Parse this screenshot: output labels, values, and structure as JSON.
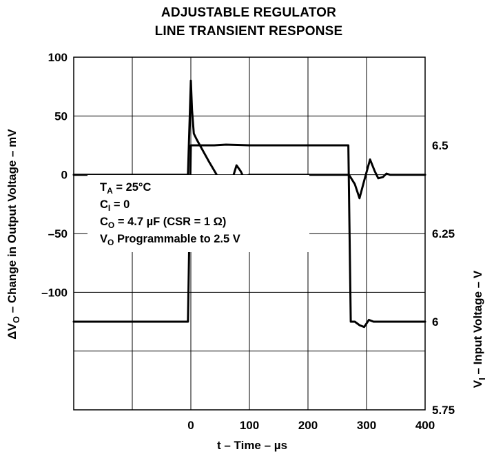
{
  "chart_data": {
    "type": "line",
    "title_lines": [
      "ADJUSTABLE REGULATOR",
      "LINE TRANSIENT RESPONSE"
    ],
    "xlabel": "t – Time – µs",
    "ylabel_left": {
      "main": "ΔV",
      "sub": "O",
      "rest": " – Change in Output Voltage – mV"
    },
    "ylabel_right": {
      "main": "V",
      "sub": "I",
      "rest": " – Input Voltage – V"
    },
    "xlim": [
      -200,
      400
    ],
    "x_ticks": [
      "0",
      "100",
      "200",
      "300",
      "400"
    ],
    "left_ylim": [
      -200,
      100
    ],
    "left_y_ticks": [
      "100",
      "50",
      "0",
      "–50",
      "–100"
    ],
    "right_ylim": [
      5.75,
      6.75
    ],
    "right_y_ticks": [
      "6.5",
      "6.25",
      "6",
      "5.75"
    ],
    "grid": true,
    "annotations": [
      {
        "main": "T",
        "sub": "A",
        "rest": " = 25°C"
      },
      {
        "main": "C",
        "sub": "I",
        "rest": " = 0"
      },
      {
        "main": "C",
        "sub": "O",
        "rest": " = 4.7 µF (CSR = 1 Ω)"
      },
      {
        "main": "V",
        "sub": "O",
        "rest": " Programmable to 2.5 V"
      }
    ],
    "series": [
      {
        "axis": "left",
        "x": [
          -200,
          -5,
          0,
          2,
          5,
          10,
          30,
          50,
          63,
          70,
          78,
          85,
          90,
          100,
          200,
          270,
          280,
          288,
          296,
          306,
          314,
          320,
          328,
          334,
          340,
          350,
          400
        ],
        "y": [
          0,
          0,
          80,
          55,
          35,
          30,
          12,
          -5,
          -17,
          -5,
          8,
          3,
          -2,
          0,
          0,
          0,
          -8,
          -20,
          -5,
          13,
          3,
          -3,
          -2,
          1,
          0,
          0,
          0
        ]
      },
      {
        "axis": "right",
        "x": [
          -200,
          -5,
          0,
          5,
          40,
          60,
          100,
          269,
          273,
          280,
          288,
          296,
          304,
          312,
          320,
          400
        ],
        "y": [
          6.0,
          6.0,
          6.5,
          6.5,
          6.5,
          6.502,
          6.5,
          6.5,
          6.0,
          6.0,
          5.99,
          5.985,
          6.005,
          6.0,
          6.0,
          6.0
        ]
      }
    ]
  }
}
